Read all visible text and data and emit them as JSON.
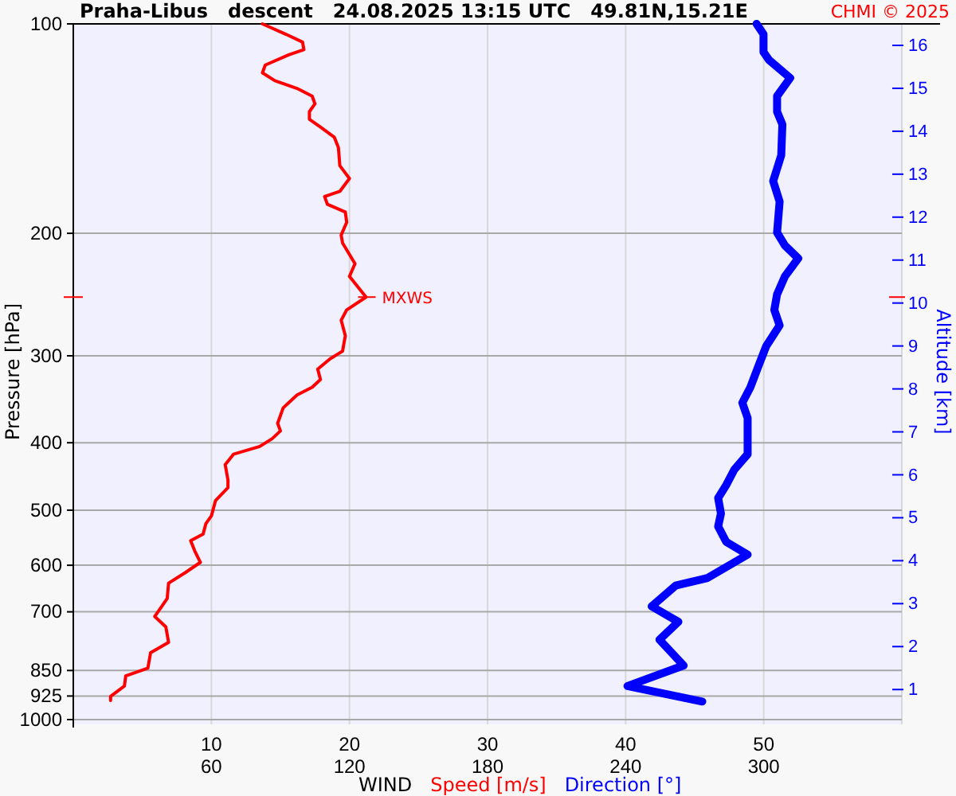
{
  "chart_data": {
    "type": "line",
    "orientation": "horizontal",
    "title": "Praha-Libus   descent   24.08.2025 13:15 UTC   49.81N,15.21E",
    "xlabel": "WIND",
    "ylabel": "Pressure [hPa]",
    "y2label": "Altitude [km]",
    "annotations": [
      "CHMI © 2025",
      {
        "text": "MXWS",
        "x": 21.2,
        "y": 247
      }
    ],
    "log": "y",
    "grid": true,
    "legend": "bottom",
    "marker": "none",
    "line_style": "solid",
    "xlim": [
      0,
      60
    ],
    "xticks": [
      10,
      20,
      30,
      40,
      50
    ],
    "x2lim": [
      0,
      360
    ],
    "x2ticks": [
      60,
      120,
      180,
      240,
      300
    ],
    "ylim": [
      1000,
      100
    ],
    "yticks": [
      100,
      200,
      300,
      400,
      500,
      600,
      700,
      850,
      925,
      1000
    ],
    "y2lim": [
      0.3,
      16.5
    ],
    "y2ticks": [
      1,
      2,
      3,
      4,
      5,
      6,
      7,
      8,
      9,
      10,
      11,
      12,
      13,
      14,
      15,
      16
    ],
    "series": [
      {
        "name": "Speed [m/s]",
        "color": "#ff0000",
        "values": [
          13.7,
          15.4,
          16.6,
          16.7,
          15.6,
          13.9,
          13.7,
          14.6,
          16.2,
          17.3,
          17.5,
          17.1,
          17.1,
          17.9,
          18.9,
          19.2,
          19.3,
          20.0,
          19.3,
          18.2,
          18.4,
          19.7,
          19.8,
          19.4,
          19.5,
          20.4,
          20.0,
          21.2,
          19.8,
          19.4,
          19.7,
          19.5,
          18.6,
          17.7,
          17.9,
          17.3,
          16.2,
          15.2,
          14.8,
          15.0,
          14.4,
          13.5,
          11.6,
          11.0,
          11.2,
          11.2,
          10.3,
          10.0,
          9.6,
          9.4,
          8.5,
          8.8,
          9.2,
          8.1,
          6.9,
          6.8,
          5.9,
          6.7,
          6.9,
          5.6,
          5.4,
          3.8,
          3.7,
          2.7,
          2.7
        ],
        "x": [
          100,
          103.5,
          106.2,
          108.9,
          110.8,
          114.6,
          117.6,
          120.7,
          123.8,
          127,
          130.3,
          133.7,
          137.1,
          140.7,
          145.5,
          150.6,
          159.9,
          166.8,
          174.1,
          177.1,
          181.7,
          186.4,
          192.8,
          201.2,
          206.5,
          221.1,
          230.7,
          247,
          257.7,
          266.7,
          280.7,
          295.4,
          303,
          313.5,
          324.4,
          332.9,
          341.6,
          356.4,
          375,
          384.7,
          394.7,
          405,
          415.5,
          430,
          452.5,
          464.2,
          484.4,
          509.7,
          522.9,
          541.2,
          553.3,
          572.5,
          594.3,
          615,
          636.6,
          669.9,
          710.9,
          735.6,
          774.3,
          801.3,
          843.3,
          865.2,
          895,
          926.1,
          938.8
        ]
      },
      {
        "name": "Direction [°]",
        "color": "#0000ff",
        "axis": "x2",
        "values": [
          296.9,
          299.9,
          299.9,
          302.3,
          311.5,
          305.8,
          305.8,
          308.1,
          307.6,
          304.1,
          306.9,
          305.8,
          309.2,
          315,
          309.2,
          305.8,
          304.6,
          306.9,
          301.1,
          297.6,
          294.2,
          290.7,
          293,
          293,
          287.2,
          283.7,
          280.2,
          281.4,
          280.2,
          283.7,
          293,
          275.6,
          261.7,
          251.3,
          262.9,
          254.7,
          265.2,
          240.8,
          273.3
        ],
        "x": [
          100,
          103.5,
          109.8,
          112.7,
          119.6,
          127,
          133.7,
          139.5,
          154.5,
          168.3,
          180.1,
          199.5,
          208.2,
          217.3,
          230.7,
          244.7,
          257.7,
          271.3,
          290.4,
          311,
          332.9,
          350.4,
          368.6,
          415.5,
          437.2,
          460.2,
          480.4,
          505.6,
          527.7,
          555.3,
          579.3,
          625.7,
          641.9,
          687.5,
          723.5,
          767.7,
          836.1,
          895,
          941.9
        ]
      }
    ]
  }
}
